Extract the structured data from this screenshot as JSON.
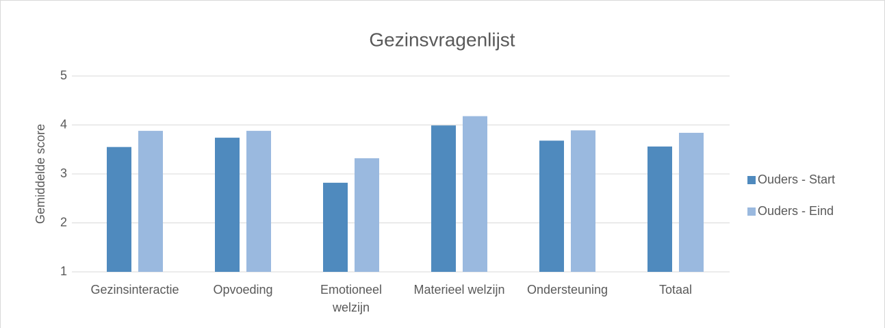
{
  "chart_data": {
    "type": "bar",
    "title": "Gezinsvragenlijst",
    "y_label": "Gemiddelde score",
    "categories": [
      "Gezinsinteractie",
      "Opvoeding",
      "Emotioneel welzijn",
      "Materieel welzijn",
      "Ondersteuning",
      "Totaal"
    ],
    "series": [
      {
        "name": "Ouders - Start",
        "color": "#4f8abe",
        "values": [
          3.55,
          3.74,
          2.82,
          3.99,
          3.68,
          3.56
        ]
      },
      {
        "name": "Ouders - Eind",
        "color": "#9ab9df",
        "values": [
          3.88,
          3.88,
          3.32,
          4.18,
          3.89,
          3.84
        ]
      }
    ],
    "ylim": [
      1,
      5
    ],
    "yticks": [
      1,
      2,
      3,
      4,
      5
    ],
    "grid": true,
    "legend": "right"
  }
}
